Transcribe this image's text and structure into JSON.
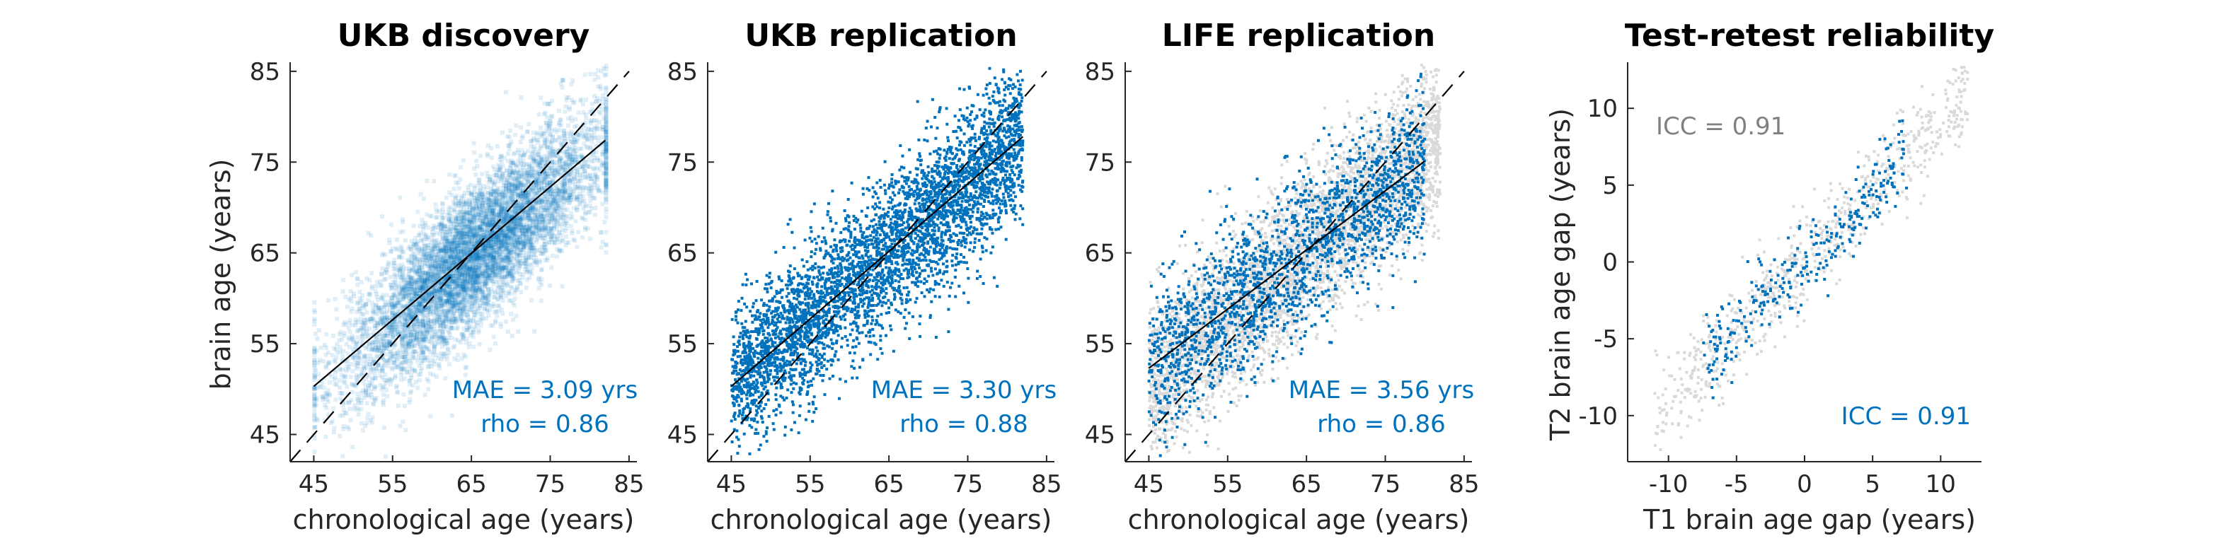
{
  "colors": {
    "blue": "#0072BD",
    "grey": "#d9d9d9",
    "axis": "#262626",
    "fit": "#000000"
  },
  "chart_data": [
    {
      "type": "scatter",
      "title": "UKB discovery",
      "xlabel": "chronological age (years)",
      "ylabel": "brain age (years)",
      "xlim": [
        42,
        86
      ],
      "ylim": [
        42,
        86
      ],
      "xticks": [
        "45",
        "55",
        "65",
        "75",
        "85"
      ],
      "yticks": [
        "45",
        "55",
        "65",
        "75",
        "85"
      ],
      "grid": false,
      "identity_line": true,
      "fit_line": {
        "x": [
          45,
          82
        ],
        "y": [
          50.3,
          77.4
        ]
      },
      "annotations": [
        "MAE = 3.09 yrs",
        "rho = 0.86"
      ],
      "series": [
        {
          "color": "blue",
          "style": "dense-transparent",
          "n": 7000,
          "x_range": [
            45,
            82
          ],
          "slope": 0.73,
          "intercept": 17.3,
          "sd": 3.9
        }
      ]
    },
    {
      "type": "scatter",
      "title": "UKB replication",
      "xlabel": "chronological age (years)",
      "ylabel": "",
      "xlim": [
        42,
        86
      ],
      "ylim": [
        42,
        86
      ],
      "xticks": [
        "45",
        "55",
        "65",
        "75",
        "85"
      ],
      "yticks": [
        "45",
        "55",
        "65",
        "75",
        "85"
      ],
      "grid": false,
      "identity_line": true,
      "fit_line": {
        "x": [
          45,
          82
        ],
        "y": [
          50.3,
          77.8
        ]
      },
      "annotations": [
        "MAE = 3.30 yrs",
        "rho = 0.88"
      ],
      "series": [
        {
          "color": "blue",
          "style": "points",
          "n": 4200,
          "x_range": [
            45,
            82
          ],
          "slope": 0.74,
          "intercept": 17.0,
          "sd": 4.1
        }
      ]
    },
    {
      "type": "scatter",
      "title": "LIFE replication",
      "xlabel": "chronological age (years)",
      "ylabel": "",
      "xlim": [
        42,
        86
      ],
      "ylim": [
        42,
        86
      ],
      "xticks": [
        "45",
        "55",
        "65",
        "75",
        "85"
      ],
      "yticks": [
        "45",
        "55",
        "65",
        "75",
        "85"
      ],
      "grid": false,
      "identity_line": true,
      "fit_line": {
        "x": [
          45,
          80
        ],
        "y": [
          52.3,
          75.1
        ]
      },
      "annotations": [
        "MAE = 3.56 yrs",
        "rho = 0.86"
      ],
      "series": [
        {
          "color": "grey",
          "style": "points",
          "n": 4000,
          "x_range": [
            45,
            82
          ],
          "slope": 0.74,
          "intercept": 17.0,
          "sd": 4.4
        },
        {
          "color": "blue",
          "style": "points",
          "n": 1900,
          "x_range": [
            45,
            80
          ],
          "slope": 0.65,
          "intercept": 23.0,
          "sd": 4.3
        }
      ]
    },
    {
      "type": "scatter",
      "title": "Test-retest reliability",
      "xlabel": "T1 brain age gap  (years)",
      "ylabel": "T2 brain age gap (years)",
      "xlim": [
        -13,
        13
      ],
      "ylim": [
        -13,
        13
      ],
      "xticks": [
        "-10",
        "-5",
        "0",
        "5",
        "10"
      ],
      "yticks": [
        "-10",
        "-5",
        "0",
        "5",
        "10"
      ],
      "grid": false,
      "identity_line": false,
      "annotations_grey": [
        "ICC = 0.91"
      ],
      "annotations": [
        "ICC = 0.91"
      ],
      "series": [
        {
          "color": "grey",
          "style": "points",
          "n": 700,
          "x_range": [
            -11,
            12
          ],
          "slope": 0.93,
          "intercept": 0,
          "sd": 1.6
        },
        {
          "color": "blue",
          "style": "points",
          "n": 300,
          "x_range": [
            -7.5,
            7.5
          ],
          "slope": 0.93,
          "intercept": 0,
          "sd": 1.4
        }
      ]
    }
  ]
}
